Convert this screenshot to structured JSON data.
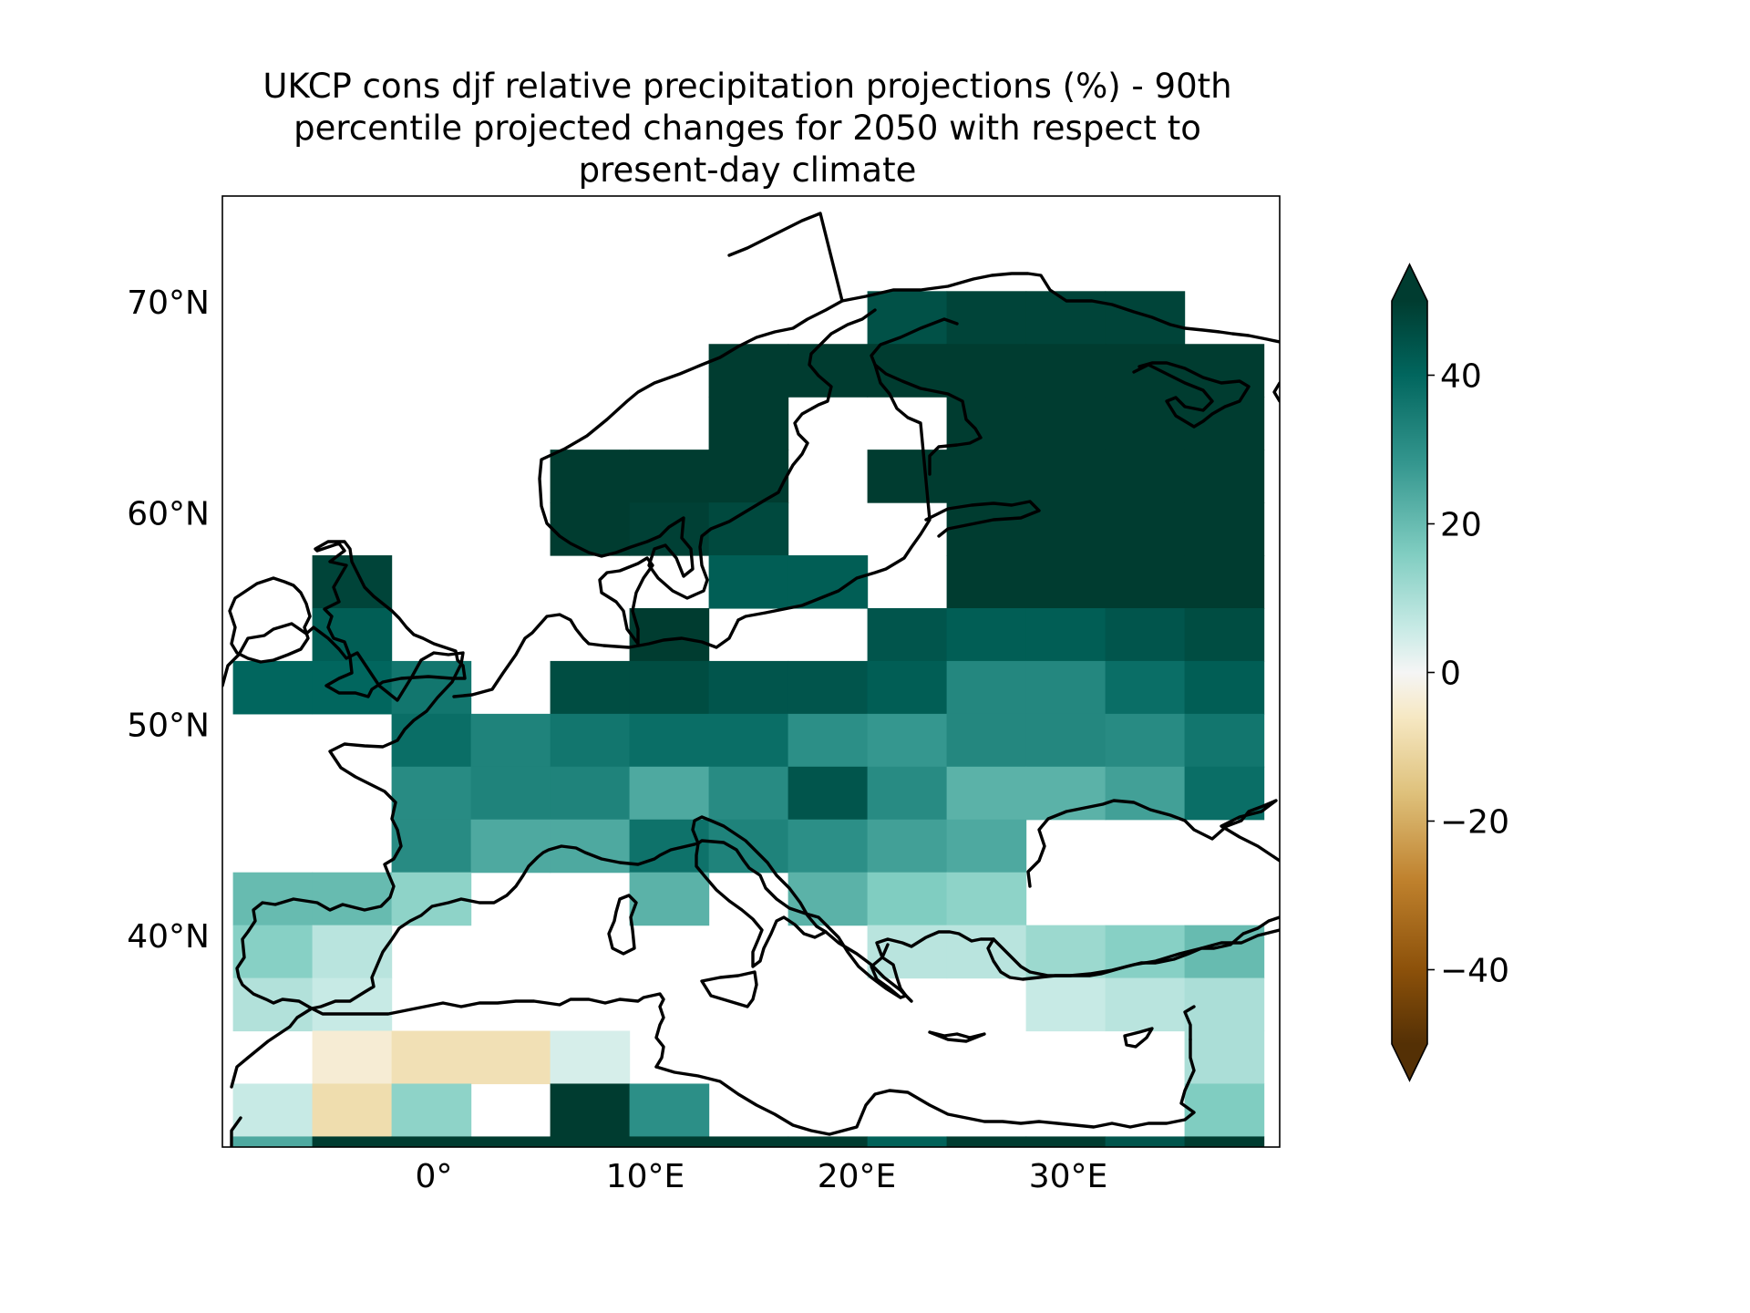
{
  "chart_data": {
    "type": "heatmap",
    "title_lines": [
      "UKCP cons djf relative precipitation projections (%) - 90th",
      "percentile projected changes for 2050 with respect to",
      "present-day climate"
    ],
    "x_ticks": [
      {
        "value": 0,
        "label": "0°"
      },
      {
        "value": 10,
        "label": "10°E"
      },
      {
        "value": 20,
        "label": "20°E"
      },
      {
        "value": 30,
        "label": "30°E"
      }
    ],
    "y_ticks": [
      {
        "value": 40,
        "label": "40°N"
      },
      {
        "value": 50,
        "label": "50°N"
      },
      {
        "value": 60,
        "label": "60°N"
      },
      {
        "value": 70,
        "label": "70°N"
      }
    ],
    "xlim": [
      -10,
      40
    ],
    "ylim": [
      30,
      75
    ],
    "colorbar": {
      "min": -50,
      "max": 50,
      "extend": "both",
      "ticks": [
        {
          "value": 40,
          "label": "40"
        },
        {
          "value": 20,
          "label": "20"
        },
        {
          "value": 0,
          "label": "0"
        },
        {
          "value": -20,
          "label": "−20"
        },
        {
          "value": -40,
          "label": "−40"
        }
      ],
      "stops": [
        {
          "v": -50,
          "c": "#543005"
        },
        {
          "v": -40,
          "c": "#8c510a"
        },
        {
          "v": -28,
          "c": "#bf812d"
        },
        {
          "v": -16,
          "c": "#dfc27d"
        },
        {
          "v": -6,
          "c": "#f6e8c3"
        },
        {
          "v": 0,
          "c": "#f5f5f5"
        },
        {
          "v": 6,
          "c": "#c7eae5"
        },
        {
          "v": 16,
          "c": "#80cdc1"
        },
        {
          "v": 28,
          "c": "#35978f"
        },
        {
          "v": 40,
          "c": "#01665e"
        },
        {
          "v": 50,
          "c": "#003c30"
        }
      ]
    },
    "grid": {
      "lon_edges": [
        -9.5,
        -5.75,
        -2.0,
        1.75,
        5.5,
        9.25,
        13.0,
        16.75,
        20.5,
        24.25,
        28.0,
        31.75,
        35.5,
        39.25
      ],
      "lat_edges": [
        70.5,
        68.0,
        65.5,
        63.0,
        60.5,
        58.0,
        55.5,
        53.0,
        50.5,
        48.0,
        45.5,
        43.0,
        40.5,
        38.0,
        35.5,
        33.0,
        30.5,
        29.5
      ],
      "values": [
        [
          null,
          null,
          null,
          null,
          null,
          null,
          null,
          null,
          45,
          48,
          48,
          48,
          null
        ],
        [
          null,
          null,
          null,
          null,
          null,
          null,
          50,
          50,
          50,
          50,
          50,
          50,
          50
        ],
        [
          null,
          null,
          null,
          null,
          null,
          null,
          50,
          null,
          null,
          50,
          50,
          50,
          50
        ],
        [
          null,
          null,
          null,
          null,
          50,
          50,
          50,
          null,
          50,
          50,
          50,
          50,
          50
        ],
        [
          null,
          null,
          null,
          null,
          50,
          49,
          47,
          null,
          null,
          50,
          50,
          50,
          50
        ],
        [
          null,
          48,
          null,
          null,
          null,
          null,
          42,
          42,
          null,
          50,
          50,
          50,
          50
        ],
        [
          null,
          42,
          null,
          null,
          null,
          50,
          null,
          null,
          44,
          42,
          42,
          44,
          46
        ],
        [
          40,
          40,
          36,
          null,
          46,
          46,
          44,
          44,
          42,
          32,
          32,
          38,
          42
        ],
        [
          null,
          null,
          38,
          33,
          36,
          38,
          38,
          30,
          28,
          32,
          32,
          31,
          36
        ],
        [
          null,
          null,
          31,
          33,
          33,
          24,
          31,
          44,
          31,
          22,
          22,
          26,
          38
        ],
        [
          null,
          null,
          31,
          24,
          24,
          37,
          33,
          30,
          26,
          24,
          null,
          null,
          null
        ],
        [
          20,
          20,
          14,
          null,
          null,
          22,
          null,
          22,
          16,
          14,
          null,
          null,
          null
        ],
        [
          15,
          8,
          null,
          null,
          null,
          null,
          null,
          null,
          8,
          8,
          12,
          15,
          20
        ],
        [
          9,
          6,
          null,
          null,
          null,
          null,
          null,
          null,
          null,
          null,
          6,
          8,
          10
        ],
        [
          null,
          -4,
          -8,
          -8,
          4,
          null,
          null,
          null,
          null,
          null,
          null,
          null,
          10
        ],
        [
          6,
          -9,
          14,
          null,
          50,
          30,
          null,
          null,
          null,
          null,
          null,
          null,
          16
        ],
        [
          24,
          50,
          50,
          50,
          50,
          50,
          50,
          50,
          41,
          50,
          50,
          44,
          50
        ]
      ]
    }
  }
}
